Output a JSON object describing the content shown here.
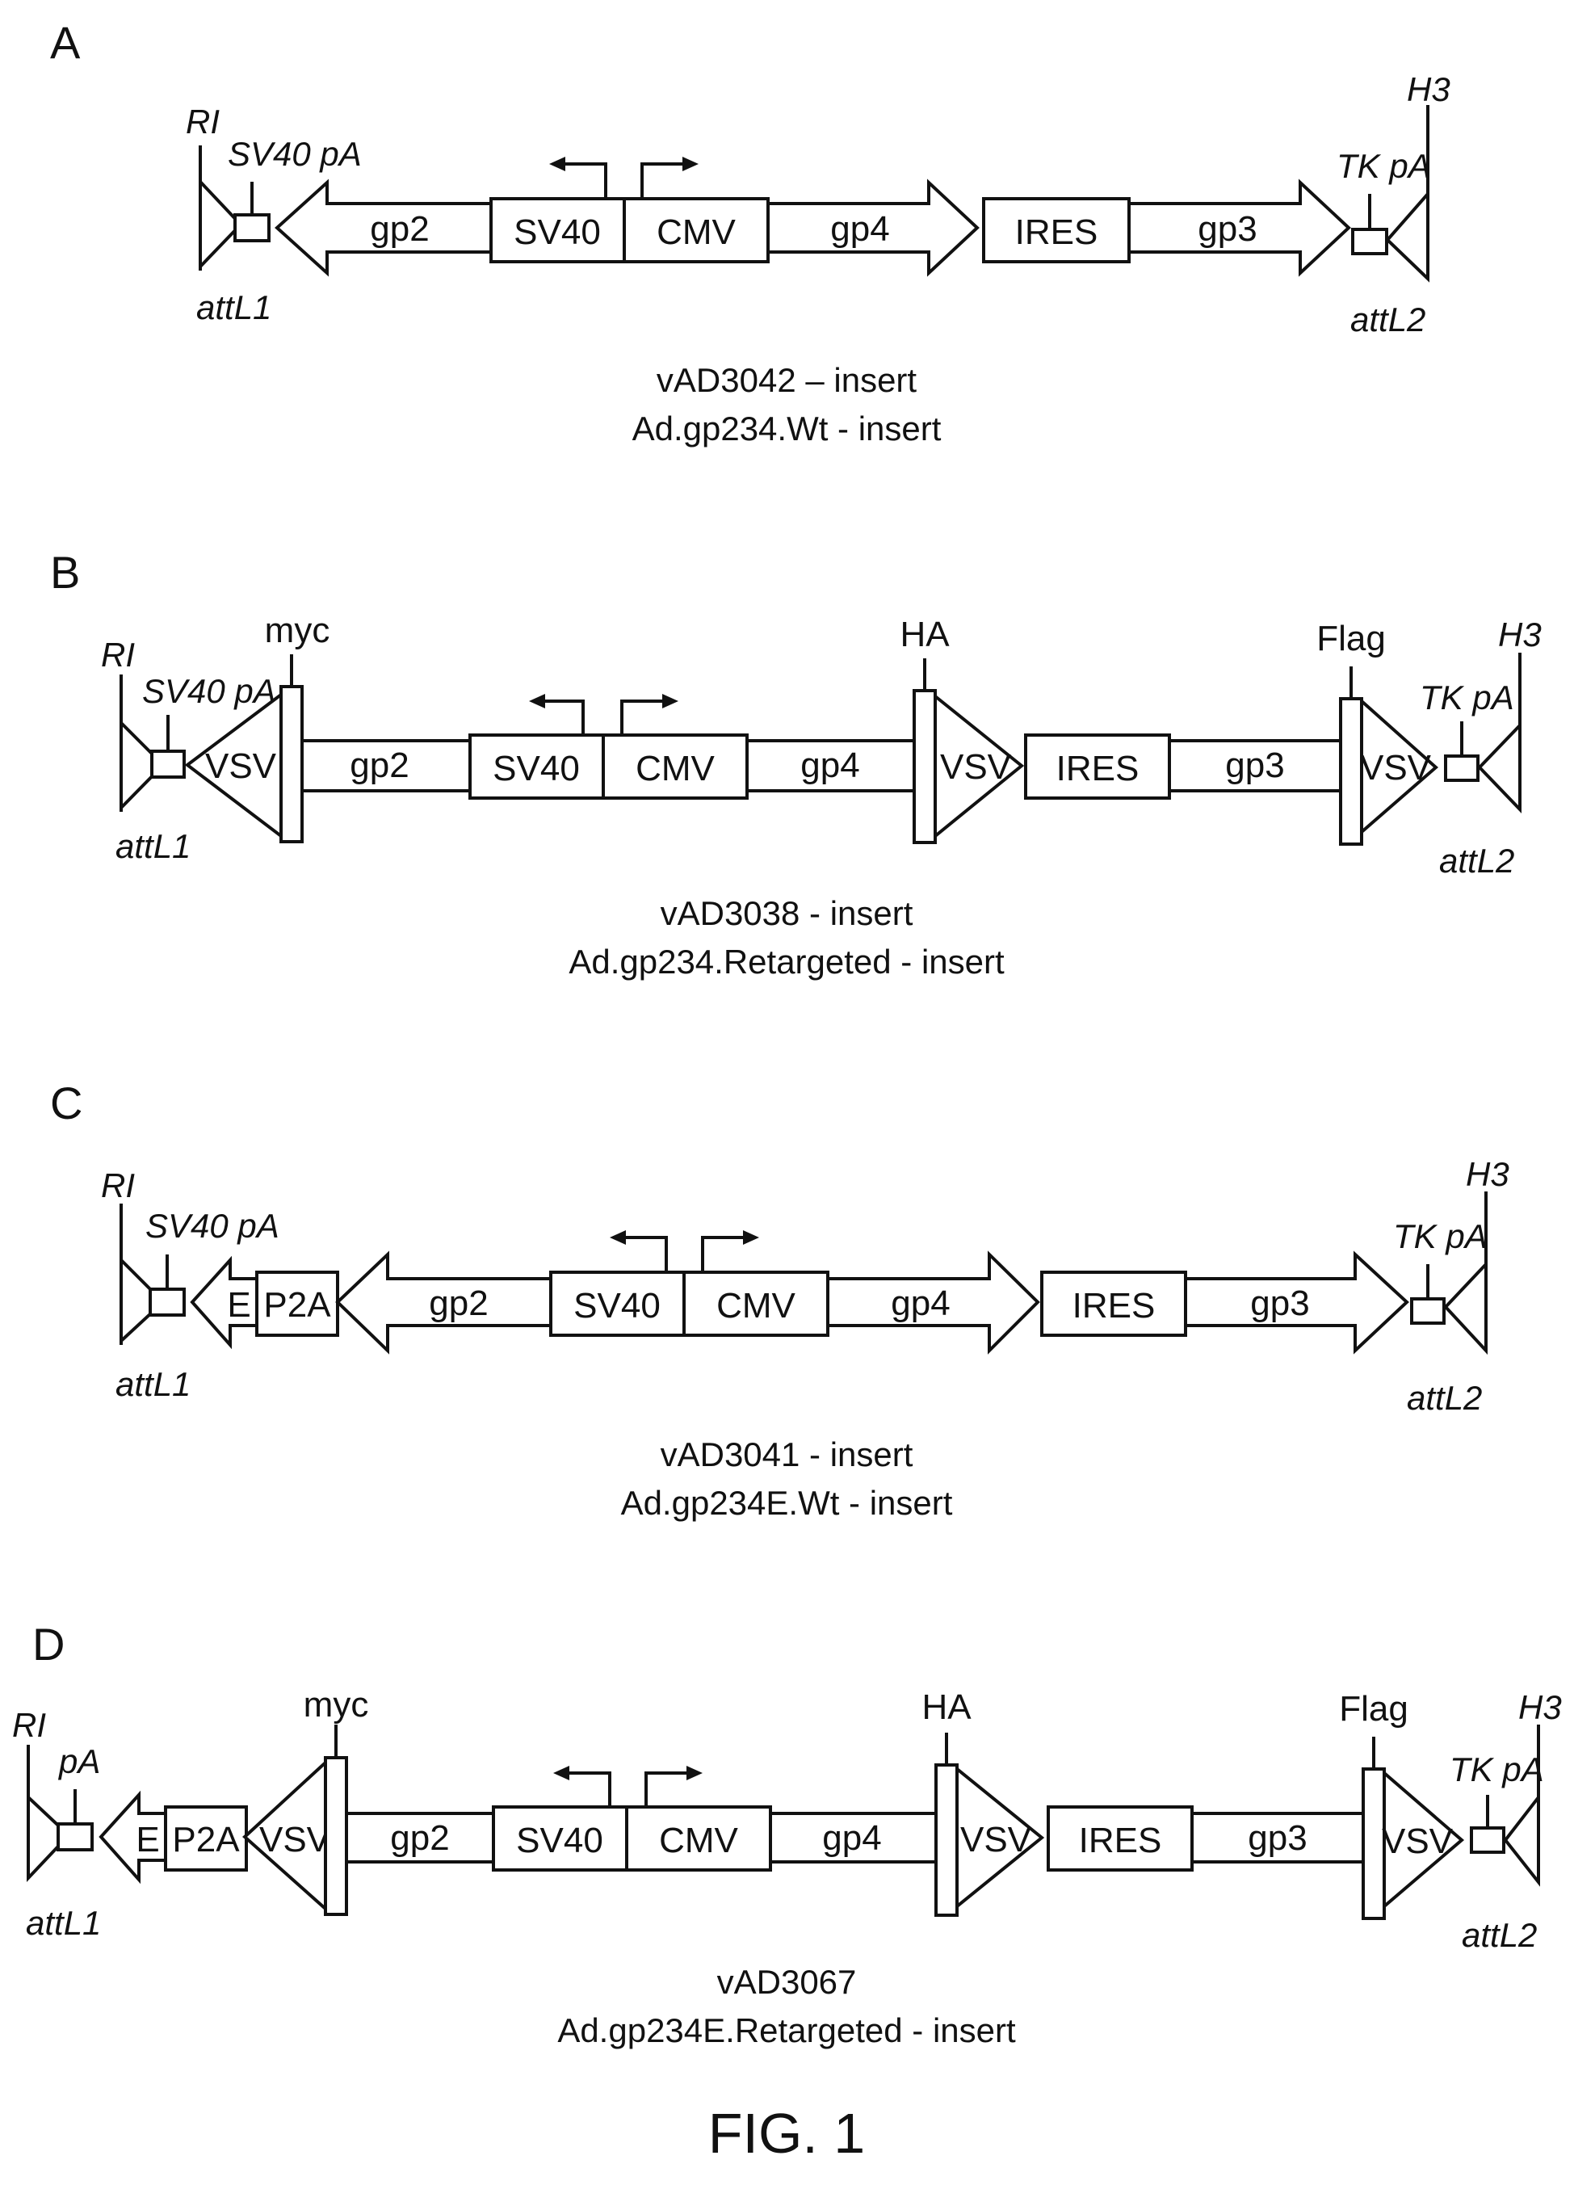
{
  "figure_caption": "FIG. 1",
  "panels": [
    {
      "letter": "A",
      "captions": [
        "vAD3042 – insert",
        "Ad.gp234.Wt - insert"
      ],
      "labels": {
        "ri": "RI",
        "pa_left": "SV40 pA",
        "att_left": "attL1",
        "gp2": "gp2",
        "sv40": "SV40",
        "cmv": "CMV",
        "gp4": "gp4",
        "ires": "IRES",
        "gp3": "gp3",
        "pa_right": "TK pA",
        "att_right": "attL2",
        "h3": "H3"
      }
    },
    {
      "letter": "B",
      "captions": [
        "vAD3038 - insert",
        "Ad.gp234.Retargeted - insert"
      ],
      "labels": {
        "ri": "RI",
        "pa_left": "SV40 pA",
        "att_left": "attL1",
        "myc": "myc",
        "vsv_left": "VSV",
        "gp2": "gp2",
        "sv40": "SV40",
        "cmv": "CMV",
        "gp4": "gp4",
        "ha": "HA",
        "vsv_mid": "VSV",
        "ires": "IRES",
        "gp3": "gp3",
        "flag": "Flag",
        "vsv_right": "VSV",
        "pa_right": "TK pA",
        "att_right": "attL2",
        "h3": "H3"
      }
    },
    {
      "letter": "C",
      "captions": [
        "vAD3041 - insert",
        "Ad.gp234E.Wt - insert"
      ],
      "labels": {
        "ri": "RI",
        "pa_left": "SV40 pA",
        "att_left": "attL1",
        "e": "E",
        "p2a": "P2A",
        "gp2": "gp2",
        "sv40": "SV40",
        "cmv": "CMV",
        "gp4": "gp4",
        "ires": "IRES",
        "gp3": "gp3",
        "pa_right": "TK pA",
        "att_right": "attL2",
        "h3": "H3"
      }
    },
    {
      "letter": "D",
      "captions": [
        "vAD3067",
        "Ad.gp234E.Retargeted - insert"
      ],
      "labels": {
        "ri": "RI",
        "pa_left": "pA",
        "att_left": "attL1",
        "e": "E",
        "p2a": "P2A",
        "myc": "myc",
        "vsv_left": "VSV",
        "gp2": "gp2",
        "sv40": "SV40",
        "cmv": "CMV",
        "gp4": "gp4",
        "ha": "HA",
        "vsv_mid": "VSV",
        "ires": "IRES",
        "gp3": "gp3",
        "flag": "Flag",
        "vsv_right": "VSV",
        "pa_right": "TK pA",
        "att_right": "attL2",
        "h3": "H3"
      }
    }
  ]
}
